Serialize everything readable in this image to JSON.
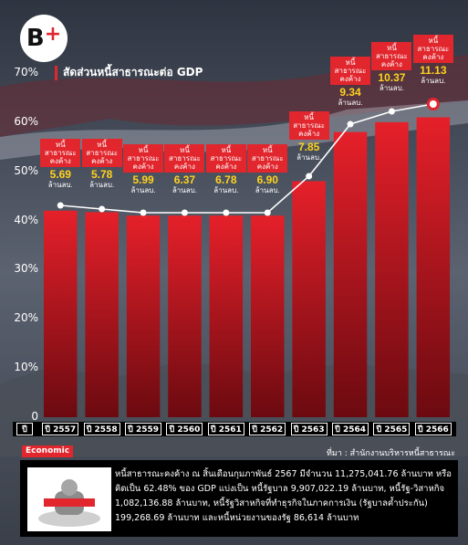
{
  "brand": {
    "logo_text": "B",
    "logo_plus": "+"
  },
  "title": "สัดส่วนหนี้สาธารณะต่อ GDP",
  "colors": {
    "accent": "#e1262d",
    "value_yellow": "#ffd21f",
    "bar_top": "#e5202a",
    "bar_bottom": "#6b0a10"
  },
  "chart_data": {
    "type": "bar",
    "categories": [
      "2557",
      "2558",
      "2559",
      "2560",
      "2561",
      "2562",
      "2563",
      "2564",
      "2565",
      "2566"
    ],
    "x_prefix": "ปี",
    "bar_values_percent_gdp": [
      42,
      41.7,
      41,
      41,
      41,
      41,
      48,
      58,
      60,
      61
    ],
    "line_values_million_baht": [
      5.69,
      5.78,
      5.99,
      6.37,
      6.78,
      6.9,
      7.85,
      9.34,
      10.37,
      11.13
    ],
    "ylim": [
      0,
      70
    ],
    "yticks": [
      0,
      10,
      20,
      30,
      40,
      50,
      60,
      70
    ],
    "ytick_labels": [
      "0",
      "10%",
      "20%",
      "30%",
      "40%",
      "50%",
      "60%",
      "70%"
    ],
    "label_box_text": "หนี้ สาธารณะ คงค้าง",
    "unit": "ล้านลบ.",
    "grid": false
  },
  "source": "ที่มา : สำนักงานบริหารหนี้สาธารณะ",
  "tag": "Economic",
  "note": "หนี้สาธารณะคงค้าง ณ สิ้นเดือนกุมภาพันธ์ 2567 มีจำนวน 11,275,041.76 ล้านบาท หรือคิดเป็น 62.48% ของ GDP แบ่งเป็น หนี้รัฐบาล 9,907,022.19 ล้านบาท, หนี้รัฐ-วิสาหกิจ 1,082,136.88 ล้านบาท, หนี้รัฐวิสาหกิจที่ทำธุรกิจในภาคการเงิน (รัฐบาลค้ำประกัน) 199,268.69 ล้านบาท และหนี้หน่วยงานของรัฐ 86,614 ล้านบาท"
}
